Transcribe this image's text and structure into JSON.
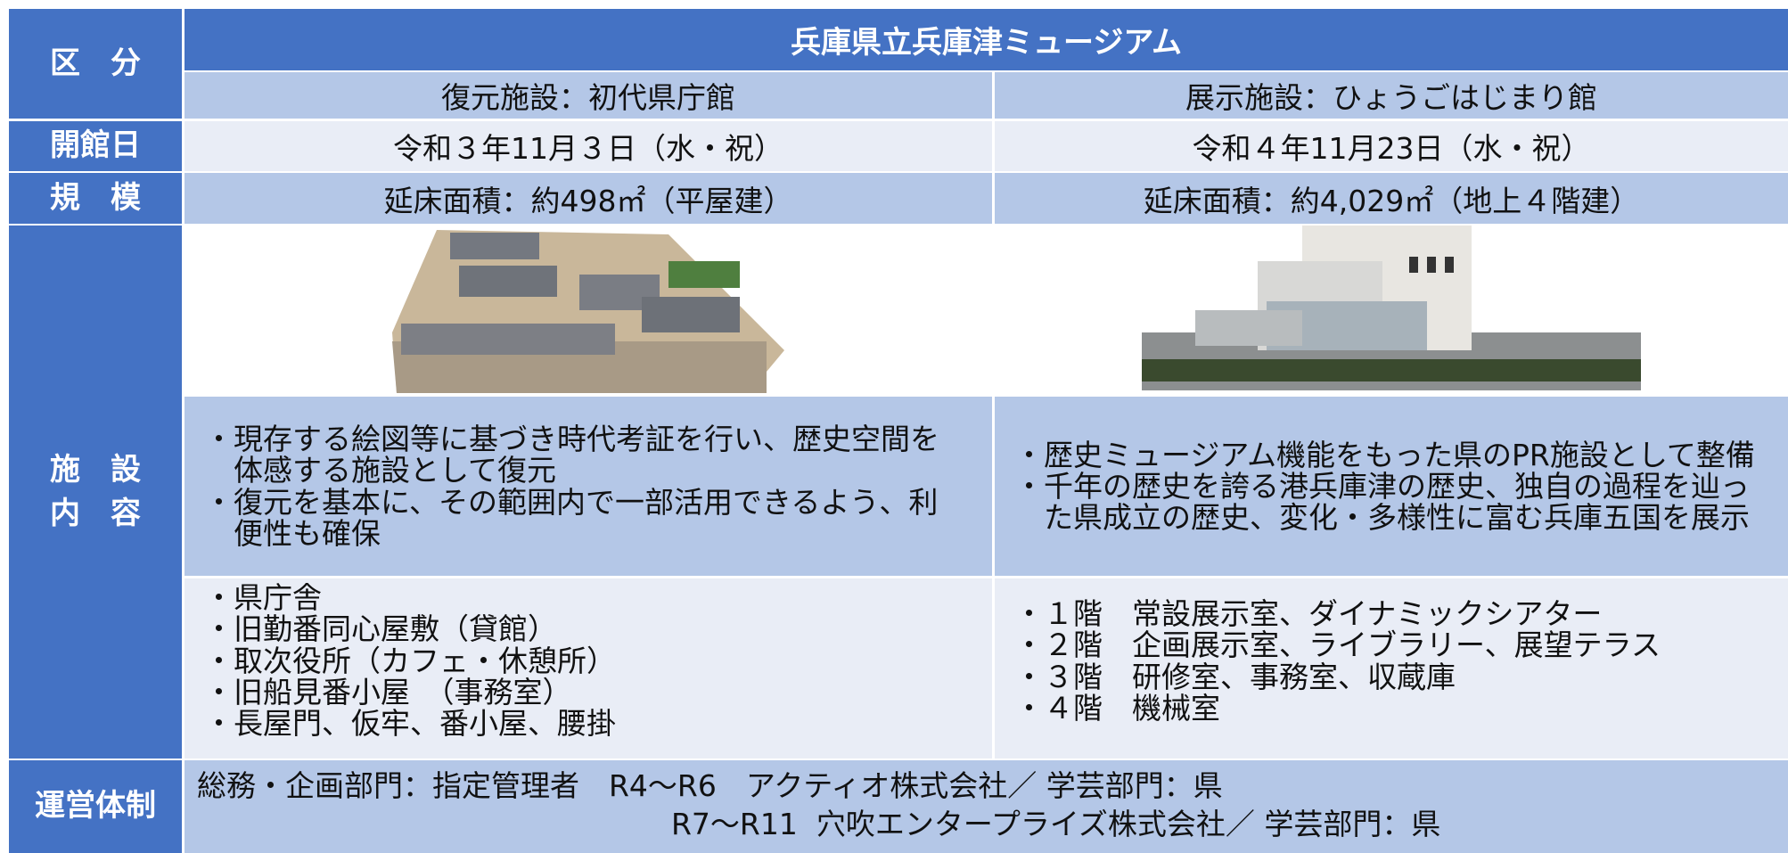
{
  "header": {
    "label": "区　分",
    "title": "兵庫県立兵庫津ミュージアム",
    "facilities": [
      "復元施設：初代県庁館",
      "展示施設：ひょうごはじまり館"
    ]
  },
  "rows": {
    "opening": {
      "label": "開館日",
      "values": [
        "令和３年11月３日（水・祝）",
        "令和４年11月23日（水・祝）"
      ]
    },
    "scale": {
      "label": "規　模",
      "values": [
        "延床面積：約498㎡（平屋建）",
        "延床面積：約4,029㎡（地上４階建）"
      ]
    },
    "content": {
      "label": [
        "施　設",
        "内　容"
      ],
      "descriptions": [
        [
          "・現存する絵図等に基づき時代考証を行い、歴史空間を体感する施設として復元",
          "・復元を基本に、その範囲内で一部活用できるよう、利便性も確保"
        ],
        [
          "・歴史ミュージアム機能をもった県のPR施設として整備",
          "・千年の歴史を誇る港兵庫津の歴史、独自の過程を辿った県成立の歴史、変化・多様性に富む兵庫五国を展示"
        ]
      ],
      "buildings": [
        [
          "・県庁舎",
          "・旧勤番同心屋敷（貸館）",
          "・取次役所（カフェ・休憩所）",
          "・旧船見番小屋　（事務室）",
          "・長屋門、仮牢、番小屋、腰掛"
        ],
        [
          "・１階　常設展示室、ダイナミックシアター",
          "・２階　企画展示室、ライブラリー、展望テラス",
          "・３階　研修室、事務室、収蔵庫",
          "・４階　機械室"
        ]
      ]
    },
    "management": {
      "label": "運営体制",
      "lines": [
        "総務・企画部門：指定管理者　R4～R6　アクティオ株式会社／ 学芸部門：県",
        "R7～R11  穴吹エンタープライズ株式会社／ 学芸部門：県"
      ]
    }
  }
}
